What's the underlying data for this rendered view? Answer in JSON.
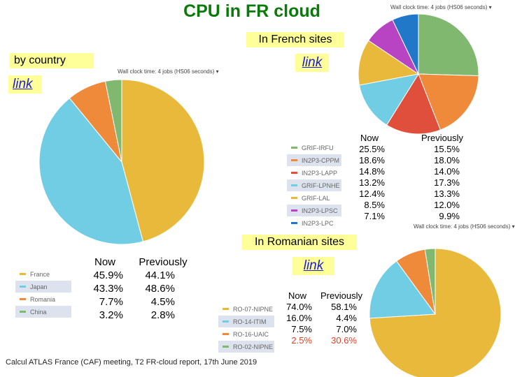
{
  "title": "CPU in FR cloud",
  "sections": {
    "french_sites": "In French sites",
    "by_country": "by country",
    "romanian_sites": "In Romanian sites"
  },
  "links": {
    "french_sites_link": "link",
    "country_link": "link",
    "romanian_link": "link"
  },
  "chart_captions": {
    "country": "Wall clock time: 4 jobs (HS06 seconds) ▾",
    "french_top": "Wall clock time: 4 jobs (HS06 seconds) ▾",
    "french_small": "Wall clock time: 4 jobs (HS06 seconds) ▾"
  },
  "column_headers": {
    "now": "Now",
    "previously": "Previously"
  },
  "footer": "Calcul ATLAS France (CAF) meeting, T2 FR-cloud report, 17th June 2019",
  "chart_data": [
    {
      "type": "pie",
      "name": "by_country",
      "labels": [
        "France",
        "Japan",
        "Romania",
        "China"
      ],
      "colors": [
        "#e8b93a",
        "#70cde3",
        "#ef8a3b",
        "#80b86f"
      ],
      "values": [
        45.9,
        43.3,
        7.7,
        3.2
      ],
      "values_display": [
        "45.9%",
        "43.3%",
        "7.7%",
        "3.2%"
      ],
      "previous_display": [
        "44.1%",
        "48.6%",
        "4.5%",
        "2.8%"
      ]
    },
    {
      "type": "pie",
      "name": "french_sites",
      "labels": [
        "GRIF-IRFU",
        "IN2P3-CPPM",
        "IN2P3-LAPP",
        "GRIF-LPNHE",
        "GRIF-LAL",
        "IN2P3-LPSC",
        "IN2P3-LPC"
      ],
      "colors": [
        "#80b86f",
        "#ef8a3b",
        "#e04e3c",
        "#70cde3",
        "#e8b93a",
        "#b844c4",
        "#2278c8"
      ],
      "values": [
        25.5,
        18.6,
        14.8,
        13.2,
        12.4,
        8.5,
        7.1
      ],
      "values_display": [
        "25.5%",
        "18.6%",
        "14.8%",
        "13.2%",
        "12.4%",
        "8.5%",
        "7.1%"
      ],
      "previous_display": [
        "15.5%",
        "18.0%",
        "14.0%",
        "17.3%",
        "13.3%",
        "12.0%",
        "9.9%"
      ]
    },
    {
      "type": "pie",
      "name": "romanian_sites",
      "labels": [
        "RO-07-NIPNE",
        "RO-14-ITIM",
        "RO-16-UAIC",
        "RO-02-NIPNE"
      ],
      "colors": [
        "#e8b93a",
        "#70cde3",
        "#ef8a3b",
        "#80b86f"
      ],
      "values": [
        74.0,
        16.0,
        7.5,
        2.5
      ],
      "values_display": [
        "74.0%",
        "16.0%",
        "7.5%",
        "2.5%"
      ],
      "previous_display": [
        "58.1%",
        "4.4%",
        "7.0%",
        "30.6%"
      ],
      "highlight_color": "#d9452a"
    }
  ]
}
